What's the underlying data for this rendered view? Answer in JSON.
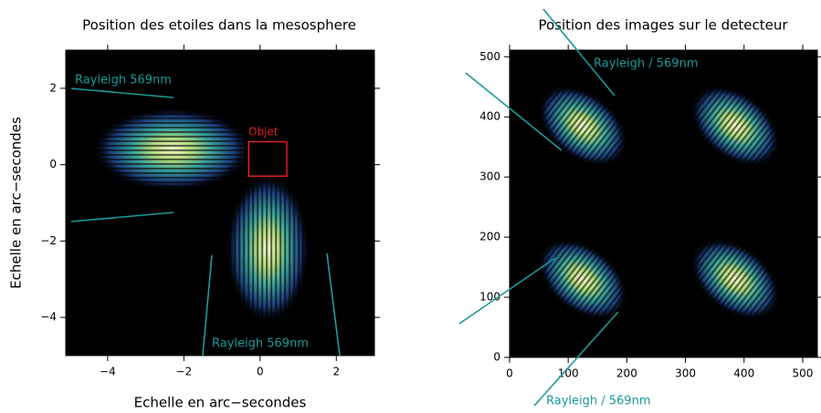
{
  "chart_data": [
    {
      "type": "image",
      "title": "Position des etoiles dans la mesosphere",
      "x_label": "Echelle en arc−secondes",
      "y_label": "Echelle en arc−secondes",
      "xlim": [
        -5.1,
        3
      ],
      "ylim": [
        -5,
        3
      ],
      "xticks": [
        {
          "value": -4,
          "label": "−4"
        },
        {
          "value": -2,
          "label": "−2"
        },
        0,
        2
      ],
      "yticks": [
        {
          "value": -4,
          "label": "−4"
        },
        {
          "value": -2,
          "label": "−2"
        },
        0,
        2
      ],
      "spots": {
        "x": [
          -2.3,
          0.2
        ],
        "y": [
          0.4,
          -2.2
        ]
      },
      "annotations": [
        "Rayleigh 569nm",
        "Rayleigh 569nm",
        "Objet"
      ]
    },
    {
      "type": "image",
      "title": "Position des images sur le detecteur",
      "xlim": [
        0,
        525
      ],
      "ylim": [
        0,
        511
      ],
      "xticks": [
        0,
        100,
        200,
        300,
        400,
        500
      ],
      "yticks": [
        0,
        100,
        200,
        300,
        400,
        500
      ],
      "spots": {
        "x": [
          125,
          385,
          125,
          385
        ],
        "y": [
          385,
          385,
          130,
          130
        ]
      },
      "annotations": [
        "Rayleigh / 569nm",
        "Rayleigh / 569nm"
      ]
    }
  ]
}
